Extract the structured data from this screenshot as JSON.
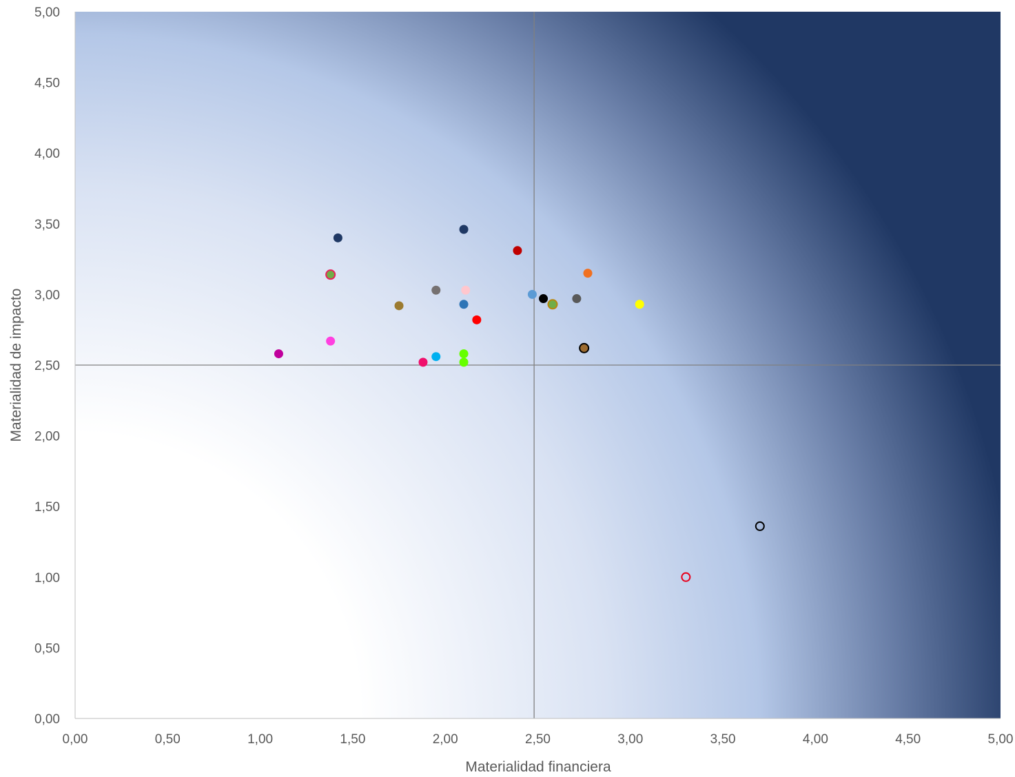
{
  "chart_data": {
    "type": "scatter",
    "title": "",
    "xlabel": "Materialidad financiera",
    "ylabel": "Materialidad de impacto",
    "xlim": [
      0,
      5
    ],
    "ylim": [
      0,
      5
    ],
    "x_ticks": [
      "0,00",
      "0,50",
      "1,00",
      "1,50",
      "2,00",
      "2,50",
      "3,00",
      "3,50",
      "4,00",
      "4,50",
      "5,00"
    ],
    "y_ticks": [
      "0,00",
      "0,50",
      "1,00",
      "1,50",
      "2,00",
      "2,50",
      "3,00",
      "3,50",
      "4,00",
      "4,50",
      "5,00"
    ],
    "reference_lines": {
      "x": 2.48,
      "y": 2.5
    },
    "background": "radial gradient from white at origin to dark navy at top-right",
    "grid": false,
    "legend": "none",
    "colors": {
      "gradient_light": "#ffffff",
      "gradient_mid": "#b4c7e7",
      "gradient_dark": "#203864",
      "reference_line": "#808080"
    },
    "points": [
      {
        "x": 1.42,
        "y": 3.4,
        "fill": "#1f3864",
        "stroke": "none"
      },
      {
        "x": 2.1,
        "y": 3.46,
        "fill": "#1f3864",
        "stroke": "none"
      },
      {
        "x": 2.39,
        "y": 3.31,
        "fill": "#c00000",
        "stroke": "none"
      },
      {
        "x": 1.38,
        "y": 3.14,
        "fill": "#70ad47",
        "stroke": "#e8205a"
      },
      {
        "x": 2.77,
        "y": 3.15,
        "fill": "#f07020",
        "stroke": "none"
      },
      {
        "x": 1.95,
        "y": 3.03,
        "fill": "#767171",
        "stroke": "none"
      },
      {
        "x": 2.11,
        "y": 3.03,
        "fill": "#ffc7ce",
        "stroke": "none"
      },
      {
        "x": 2.47,
        "y": 3.0,
        "fill": "#5b9bd5",
        "stroke": "none"
      },
      {
        "x": 2.53,
        "y": 2.97,
        "fill": "#000000",
        "stroke": "none"
      },
      {
        "x": 2.71,
        "y": 2.97,
        "fill": "#595959",
        "stroke": "none"
      },
      {
        "x": 2.58,
        "y": 2.93,
        "fill": "#70ad47",
        "stroke": "#b8860b"
      },
      {
        "x": 3.05,
        "y": 2.93,
        "fill": "#ffff00",
        "stroke": "none"
      },
      {
        "x": 1.75,
        "y": 2.92,
        "fill": "#9c7b30",
        "stroke": "none"
      },
      {
        "x": 2.1,
        "y": 2.93,
        "fill": "#2e75b6",
        "stroke": "none"
      },
      {
        "x": 2.17,
        "y": 2.82,
        "fill": "#ff0000",
        "stroke": "none"
      },
      {
        "x": 1.38,
        "y": 2.67,
        "fill": "#ff40e0",
        "stroke": "none"
      },
      {
        "x": 2.75,
        "y": 2.62,
        "fill": "#9c6b30",
        "stroke": "#000000"
      },
      {
        "x": 1.1,
        "y": 2.58,
        "fill": "#c0009c",
        "stroke": "none"
      },
      {
        "x": 2.1,
        "y": 2.58,
        "fill": "#66ff00",
        "stroke": "none"
      },
      {
        "x": 1.95,
        "y": 2.56,
        "fill": "#00b0f0",
        "stroke": "none"
      },
      {
        "x": 1.88,
        "y": 2.52,
        "fill": "#f0106c",
        "stroke": "none"
      },
      {
        "x": 2.1,
        "y": 2.52,
        "fill": "#66ff00",
        "stroke": "none"
      },
      {
        "x": 3.7,
        "y": 1.36,
        "fill": "none",
        "stroke": "#000000"
      },
      {
        "x": 3.3,
        "y": 1.0,
        "fill": "none",
        "stroke": "#e8001c"
      }
    ]
  }
}
